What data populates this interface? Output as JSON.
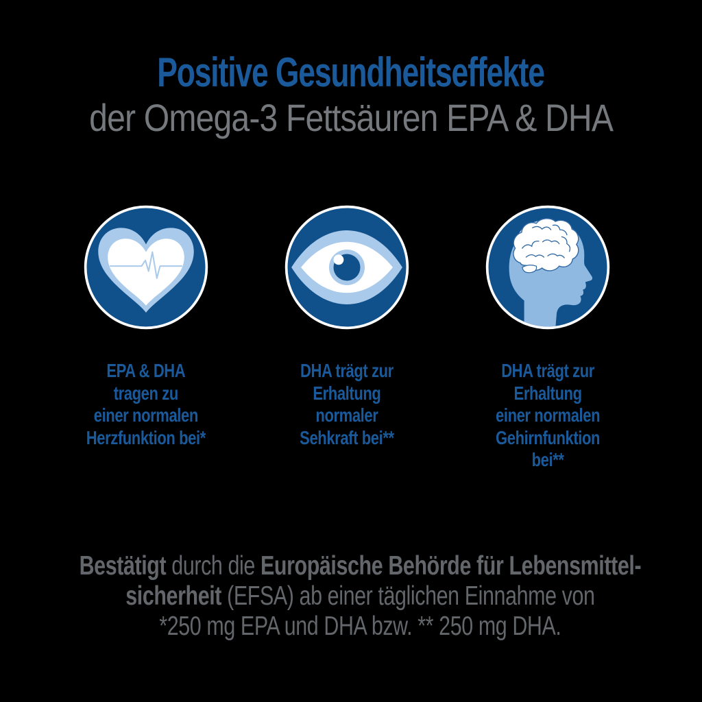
{
  "header": {
    "title": "Positive Gesundheitseffekte",
    "subtitle": "der Omega-3 Fettsäuren EPA & DHA"
  },
  "benefits": [
    {
      "icon": "heart-ekg-icon",
      "text": "EPA & DHA\ntragen zu\neiner normalen\nHerzfunktion bei*"
    },
    {
      "icon": "eye-icon",
      "text": "DHA trägt zur\nErhaltung\nnormaler\nSehkraft bei**"
    },
    {
      "icon": "brain-head-icon",
      "text": "DHA trägt zur\nErhaltung\neiner normalen\nGehirnfunktion\nbei**"
    }
  ],
  "footer": {
    "lines": [
      [
        {
          "text": "Bestätigt",
          "bold": true
        },
        {
          "text": " durch die ",
          "bold": false
        },
        {
          "text": "Europäische Behörde für Lebensmittel-",
          "bold": true
        }
      ],
      [
        {
          "text": "sicherheit",
          "bold": true
        },
        {
          "text": " (EFSA) ab einer täglichen Einnahme von",
          "bold": false
        }
      ],
      [
        {
          "text": "*250 mg EPA und DHA bzw. ** 250 mg DHA.",
          "bold": false
        }
      ]
    ]
  },
  "colors": {
    "bg": "#000000",
    "blue": "#1a5a9b",
    "subtitle-gray": "#75787c",
    "footer-gray": "#63666a",
    "circle-blue": "#10518c",
    "light-blue": "#a9caeb",
    "head-blue": "#8fb9e0",
    "crown-blue": "#bdd5ee",
    "brain-line-blue": "#2f67a3",
    "ring-white": "#ffffff"
  }
}
